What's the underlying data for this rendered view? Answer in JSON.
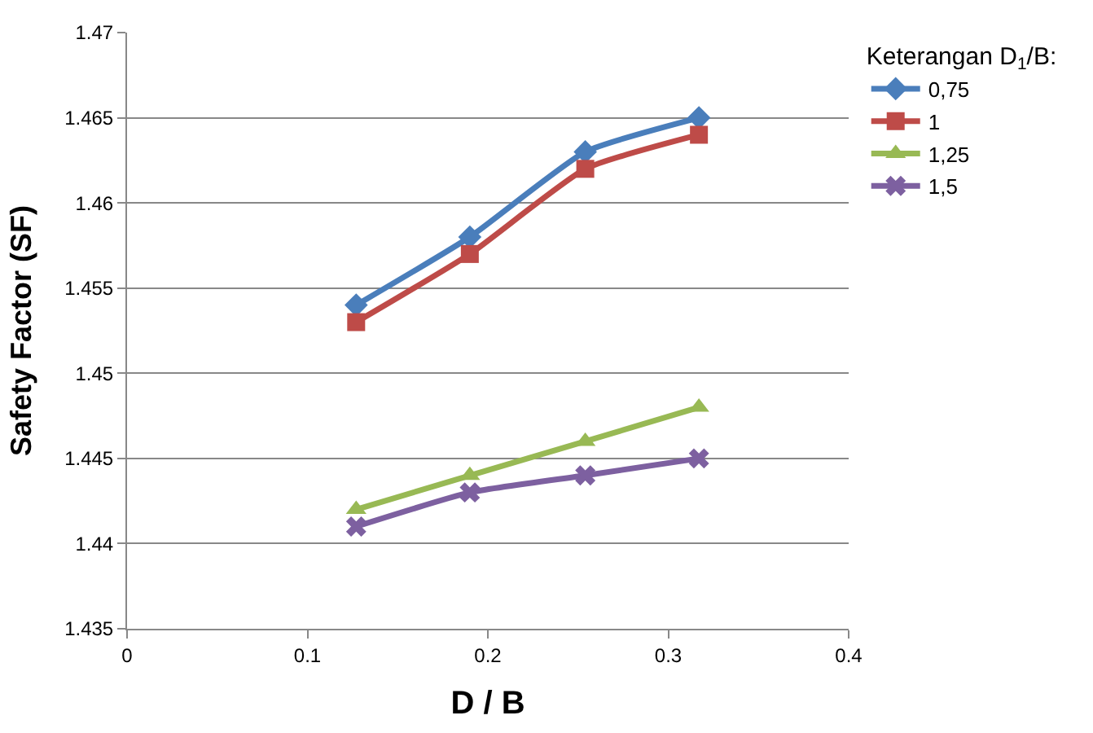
{
  "chart_data": {
    "type": "line",
    "xlabel": "D / B",
    "ylabel": "Safety Factor (SF)",
    "legend_title": "Keterangan D$_{1}$/B:",
    "x": [
      0.127,
      0.19,
      0.254,
      0.317
    ],
    "series": [
      {
        "name": "0,75",
        "color": "#4a7ebb",
        "marker": "diamond",
        "values": [
          1.454,
          1.458,
          1.463,
          1.465
        ]
      },
      {
        "name": "1",
        "color": "#be4b48",
        "marker": "square",
        "values": [
          1.453,
          1.457,
          1.462,
          1.464
        ]
      },
      {
        "name": "1,25",
        "color": "#98b954",
        "marker": "triangle",
        "values": [
          1.442,
          1.444,
          1.446,
          1.448
        ]
      },
      {
        "name": "1,5",
        "color": "#7d60a0",
        "marker": "cross",
        "values": [
          1.441,
          1.443,
          1.444,
          1.445
        ]
      }
    ],
    "xlim": [
      0,
      0.4
    ],
    "xticks": [
      0,
      0.1,
      0.2,
      0.3,
      0.4
    ],
    "ylim": [
      1.435,
      1.47
    ],
    "yticks": [
      1.435,
      1.44,
      1.445,
      1.45,
      1.455,
      1.46,
      1.465,
      1.47
    ],
    "grid": "y",
    "legend": "right",
    "line_style": "solid"
  }
}
